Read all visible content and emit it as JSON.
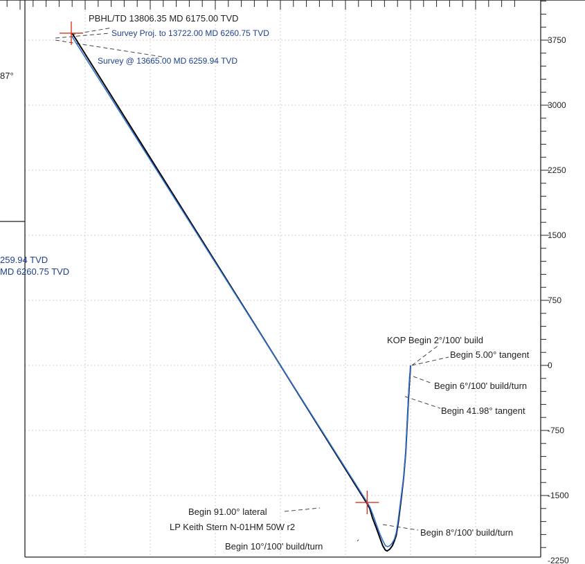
{
  "chart_data": {
    "type": "line",
    "title": "",
    "xlabel": "",
    "ylabel": "",
    "y_axis_side": "right",
    "ylim": [
      -2250,
      4350
    ],
    "xlim": [
      -4750,
      1250
    ],
    "grid": true,
    "y_ticks": [
      {
        "value": 3750,
        "label": "3750"
      },
      {
        "value": 3000,
        "label": "3000"
      },
      {
        "value": 2250,
        "label": "2250"
      },
      {
        "value": 1500,
        "label": "1500"
      },
      {
        "value": 750,
        "label": "750"
      },
      {
        "value": 0,
        "label": "0"
      },
      {
        "value": -750,
        "label": "-750"
      },
      {
        "value": -1500,
        "label": "-1500"
      },
      {
        "value": -2250,
        "label": "-2250"
      }
    ],
    "series": [
      {
        "color": "#000000",
        "x": [
          0,
          -2,
          -8,
          -25,
          -55,
          -80,
          -110,
          -140,
          -165,
          -185,
          -210,
          -240,
          -270,
          -290,
          -320,
          -360,
          -400,
          -440,
          -470,
          -510,
          -3900
        ],
        "y": [
          0,
          -60,
          -120,
          -400,
          -1000,
          -1300,
          -1560,
          -1800,
          -1960,
          -2020,
          -2080,
          -2120,
          -2140,
          -2130,
          -2080,
          -1970,
          -1860,
          -1755,
          -1650,
          -1580,
          3830
        ]
      },
      {
        "color": "#2e6fd0",
        "x": [
          0,
          -3,
          -10,
          -26,
          -55,
          -80,
          -112,
          -142,
          -165,
          -185,
          -212,
          -240,
          -265,
          -288,
          -315,
          -355,
          -395,
          -430,
          -465,
          -505,
          -3900
        ],
        "y": [
          0,
          -60,
          -120,
          -390,
          -990,
          -1290,
          -1540,
          -1780,
          -1930,
          -2000,
          -2050,
          -2080,
          -2090,
          -2080,
          -2030,
          -1940,
          -1830,
          -1730,
          -1640,
          -1570,
          3790
        ]
      }
    ],
    "markers": [
      {
        "x": -3910,
        "y": 3830,
        "color": "#e03020"
      },
      {
        "x": -500,
        "y": -1580,
        "color": "#e03020"
      }
    ]
  },
  "annotations": {
    "pbhl": "PBHL/TD 13806.35 MD 6175.00 TVD",
    "survey_proj": "Survey Proj. to 13722.00 MD 6260.75 TVD",
    "survey_at": "Survey @ 13665.00 MD 6259.94 TVD",
    "kop": "KOP Begin 2°/100' build",
    "tangent5": "Begin 5.00° tangent",
    "build6": "Begin 6°/100' build/turn",
    "tangent42": "Begin 41.98° tangent",
    "lateral": "Begin 91.00° lateral",
    "lp": "LP Keith Stern N-01HM 50W r2",
    "build10": "Begin 10°/100' build/turn",
    "build8": "Begin 8°/100' build/turn"
  },
  "side_text": {
    "deg": "87°",
    "tvd1": "259.94 TVD",
    "tvd2": "MD 6260.75 TVD"
  }
}
